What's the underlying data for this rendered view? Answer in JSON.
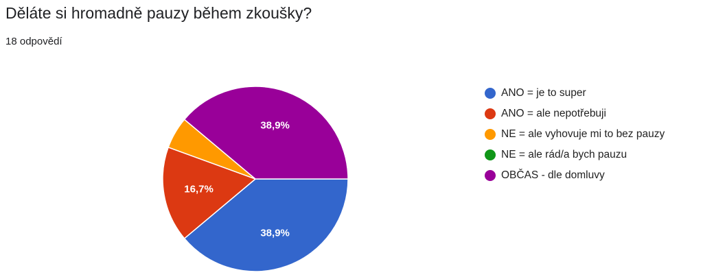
{
  "header": {
    "title": "Děláte si hromadně pauzy během zkoušky?",
    "response_count": "18 odpovědí"
  },
  "chart_data": {
    "type": "pie",
    "total_responses": 18,
    "slices": [
      {
        "label": "ANO = je to super",
        "value": 7,
        "percent_label": "38,9%",
        "color": "#3366cc"
      },
      {
        "label": "ANO = ale nepotřebuji",
        "value": 3,
        "percent_label": "16,7%",
        "color": "#dc3912"
      },
      {
        "label": "NE = ale vyhovuje mi to bez pauzy",
        "value": 1,
        "percent_label": "",
        "color": "#ff9900"
      },
      {
        "label": "NE = ale rád/a bych pauzu",
        "value": 0,
        "percent_label": "",
        "color": "#109618"
      },
      {
        "label": "OBČAS - dle domluvy",
        "value": 7,
        "percent_label": "38,9%",
        "color": "#990099"
      }
    ],
    "legend_position": "right"
  }
}
